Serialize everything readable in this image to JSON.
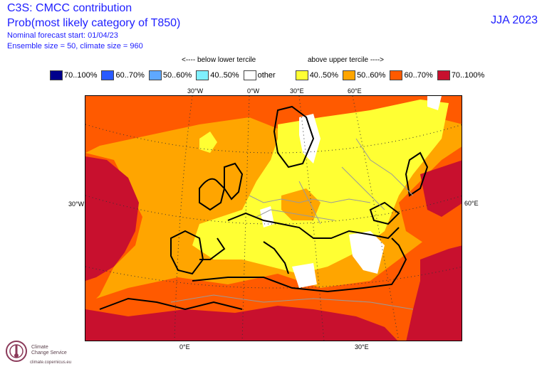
{
  "header": {
    "title": "C3S: CMCC contribution",
    "subtitle": "Prob(most likely category of T850)",
    "forecast_start": "Nominal forecast start: 01/04/23",
    "ensemble": "Ensemble size = 50, climate size = 960",
    "season": "JJA 2023"
  },
  "terciles": {
    "below": "<---- below lower tercile",
    "above": "above upper tercile ---->"
  },
  "legend": [
    {
      "label": "70..100%",
      "color": "#00008c"
    },
    {
      "label": "60..70%",
      "color": "#2a5bff"
    },
    {
      "label": "50..60%",
      "color": "#5fa8ff"
    },
    {
      "label": "40..50%",
      "color": "#7ff0ff"
    },
    {
      "label": "other",
      "color": "#ffffff"
    },
    {
      "label": "40..50%",
      "color": "#ffff33"
    },
    {
      "label": "50..60%",
      "color": "#ffa500"
    },
    {
      "label": "60..70%",
      "color": "#ff5a00"
    },
    {
      "label": "70..100%",
      "color": "#c8102e"
    }
  ],
  "axes": {
    "top": [
      "30°W",
      "0°W",
      "30°E",
      "60°E"
    ],
    "left": "30°W",
    "right": "60°E",
    "bottom": [
      "0°E",
      "30°E"
    ]
  },
  "logo": {
    "line1": "Climate",
    "line2": "Change Service",
    "url": "climate.copernicus.eu"
  }
}
